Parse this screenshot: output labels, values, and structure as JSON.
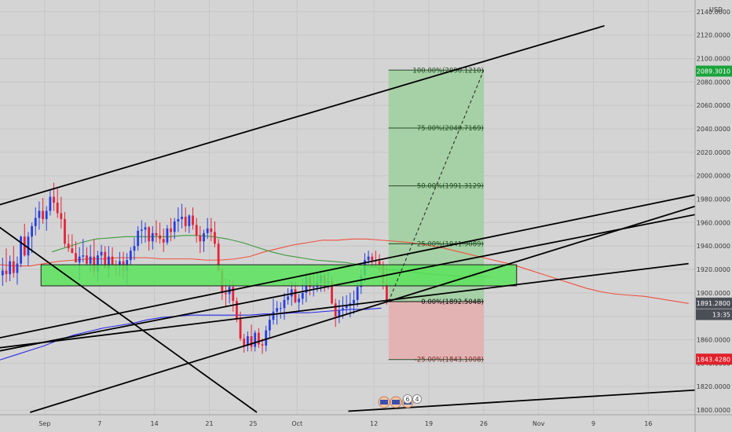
{
  "chart_data": {
    "type": "candlestick",
    "currency": "USD",
    "y_axis": {
      "ylim": [
        1796,
        2150
      ],
      "ticks": [
        "2140.0000",
        "2120.0000",
        "2100.0000",
        "2080.0000",
        "2060.0000",
        "2040.0000",
        "2020.0000",
        "2000.0000",
        "1980.0000",
        "1960.0000",
        "1940.0000",
        "1920.0000",
        "1900.0000",
        "1880.0000",
        "1860.0000",
        "1840.0000",
        "1820.0000",
        "1800.0000"
      ],
      "tick_values": [
        2140,
        2120,
        2100,
        2080,
        2060,
        2040,
        2020,
        2000,
        1980,
        1960,
        1940,
        1920,
        1900,
        1880,
        1860,
        1840,
        1820,
        1800
      ]
    },
    "x_axis": {
      "ticks": [
        {
          "label": "Sep",
          "bar": 12
        },
        {
          "label": "7",
          "bar": 27
        },
        {
          "label": "14",
          "bar": 42
        },
        {
          "label": "21",
          "bar": 57
        },
        {
          "label": "25",
          "bar": 69
        },
        {
          "label": "Oct",
          "bar": 81
        },
        {
          "label": "12",
          "bar": 102
        },
        {
          "label": "19",
          "bar": 117
        },
        {
          "label": "26",
          "bar": 132
        },
        {
          "label": "Nov",
          "bar": 147
        },
        {
          "label": "9",
          "bar": 162
        },
        {
          "label": "16",
          "bar": 177
        }
      ],
      "total_bars": 190
    },
    "price_badges": [
      {
        "text": "2089.3010",
        "value": 2089.301,
        "color": "#1aa33b"
      },
      {
        "text": "1891.2800",
        "value": 1891.28,
        "color": "#4a4e55"
      },
      {
        "text": "13:35",
        "value": 1881.5,
        "color": "#4a4e55"
      },
      {
        "text": "1843.4280",
        "value": 1843.428,
        "color": "#e0202a"
      }
    ],
    "fib_levels": [
      {
        "label": "100.00%(2090.1210)",
        "value": 2090.121
      },
      {
        "label": "75.00%(2040.7169)",
        "value": 2040.7169
      },
      {
        "label": "50.00%(1991.3129)",
        "value": 1991.3129
      },
      {
        "label": "25.00%(1941.9089)",
        "value": 1941.9089
      },
      {
        "label": "0.00%(1892.5048)",
        "value": 1892.5048
      },
      {
        "label": "-25.00%(1843.1008)",
        "value": 1843.1008
      }
    ],
    "position": {
      "start_bar": 106,
      "end_bar": 132,
      "entry": 1892.5048,
      "target": 2090.121,
      "stop": 1843.1008,
      "profit_color": "#a6d0a6",
      "loss_color": "#e3b3b3"
    },
    "zone": {
      "start_bar": 11,
      "end_bar": 141,
      "top": 1924,
      "bottom": 1906,
      "color": "#5be35b"
    },
    "trendlines": [
      {
        "from": [
          -6,
          1970
        ],
        "to": [
          165,
          2128
        ]
      },
      {
        "from": [
          -6,
          1858
        ],
        "to": [
          195,
          1987
        ]
      },
      {
        "from": [
          -6,
          1847
        ],
        "to": [
          195,
          1970
        ]
      },
      {
        "from": [
          -6,
          1851
        ],
        "to": [
          188,
          1925
        ]
      },
      {
        "from": [
          8,
          1798
        ],
        "to": [
          195,
          1979
        ]
      },
      {
        "from": [
          -3,
          1962
        ],
        "to": [
          70,
          1798
        ]
      },
      {
        "from": [
          95,
          1799
        ],
        "to": [
          195,
          1818
        ]
      }
    ],
    "dashed_line": {
      "from": [
        106,
        1892.5
      ],
      "to": [
        132,
        2090
      ]
    },
    "event_badges": [
      "6",
      "4"
    ],
    "candles": [
      [
        1915,
        1930,
        1906,
        1919
      ],
      [
        1919,
        1938,
        1909,
        1916
      ],
      [
        1916,
        1932,
        1910,
        1927
      ],
      [
        1927,
        1940,
        1913,
        1917
      ],
      [
        1917,
        1931,
        1907,
        1925
      ],
      [
        1925,
        1949,
        1922,
        1948
      ],
      [
        1948,
        1959,
        1931,
        1932
      ],
      [
        1932,
        1952,
        1923,
        1948
      ],
      [
        1948,
        1960,
        1934,
        1957
      ],
      [
        1957,
        1973,
        1949,
        1964
      ],
      [
        1964,
        1978,
        1954,
        1970
      ],
      [
        1970,
        1981,
        1959,
        1963
      ],
      [
        1963,
        1974,
        1953,
        1970
      ],
      [
        1970,
        1988,
        1966,
        1982
      ],
      [
        1982,
        1994,
        1970,
        1977
      ],
      [
        1977,
        1989,
        1964,
        1968
      ],
      [
        1968,
        1982,
        1955,
        1963
      ],
      [
        1963,
        1969,
        1939,
        1942
      ],
      [
        1942,
        1950,
        1935,
        1938
      ],
      [
        1938,
        1950,
        1934,
        1934
      ],
      [
        1934,
        1944,
        1926,
        1926
      ],
      [
        1926,
        1939,
        1911,
        1931
      ],
      [
        1931,
        1946,
        1926,
        1932
      ],
      [
        1932,
        1939,
        1923,
        1925
      ],
      [
        1925,
        1941,
        1918,
        1931
      ],
      [
        1931,
        1946,
        1914,
        1918
      ],
      [
        1918,
        1936,
        1910,
        1932
      ],
      [
        1932,
        1941,
        1922,
        1935
      ],
      [
        1935,
        1940,
        1921,
        1921
      ],
      [
        1921,
        1940,
        1913,
        1931
      ],
      [
        1931,
        1939,
        1924,
        1924
      ],
      [
        1924,
        1928,
        1914,
        1923
      ],
      [
        1923,
        1935,
        1914,
        1927
      ],
      [
        1927,
        1935,
        1912,
        1919
      ],
      [
        1919,
        1934,
        1907,
        1928
      ],
      [
        1928,
        1939,
        1924,
        1936
      ],
      [
        1936,
        1947,
        1928,
        1940
      ],
      [
        1940,
        1957,
        1936,
        1953
      ],
      [
        1953,
        1962,
        1942,
        1954
      ],
      [
        1954,
        1960,
        1943,
        1956
      ],
      [
        1956,
        1957,
        1936,
        1944
      ],
      [
        1944,
        1957,
        1937,
        1951
      ],
      [
        1951,
        1962,
        1943,
        1949
      ],
      [
        1949,
        1960,
        1942,
        1946
      ],
      [
        1946,
        1955,
        1935,
        1943
      ],
      [
        1943,
        1958,
        1941,
        1955
      ],
      [
        1955,
        1964,
        1944,
        1952
      ],
      [
        1952,
        1964,
        1946,
        1961
      ],
      [
        1961,
        1973,
        1952,
        1963
      ],
      [
        1963,
        1976,
        1955,
        1965
      ],
      [
        1965,
        1973,
        1952,
        1957
      ],
      [
        1957,
        1967,
        1951,
        1966
      ],
      [
        1966,
        1973,
        1954,
        1958
      ],
      [
        1958,
        1964,
        1943,
        1949
      ],
      [
        1949,
        1957,
        1934,
        1944
      ],
      [
        1944,
        1954,
        1935,
        1951
      ],
      [
        1951,
        1964,
        1946,
        1955
      ],
      [
        1955,
        1964,
        1944,
        1952
      ],
      [
        1952,
        1961,
        1939,
        1942
      ],
      [
        1942,
        1946,
        1918,
        1919
      ],
      [
        1919,
        1921,
        1894,
        1900
      ],
      [
        1900,
        1912,
        1888,
        1899
      ],
      [
        1899,
        1911,
        1891,
        1905
      ],
      [
        1905,
        1911,
        1884,
        1893
      ],
      [
        1893,
        1896,
        1875,
        1878
      ],
      [
        1878,
        1884,
        1859,
        1861
      ],
      [
        1861,
        1865,
        1849,
        1855
      ],
      [
        1855,
        1867,
        1850,
        1863
      ],
      [
        1863,
        1873,
        1850,
        1854
      ],
      [
        1854,
        1868,
        1850,
        1866
      ],
      [
        1866,
        1870,
        1853,
        1856
      ],
      [
        1856,
        1861,
        1848,
        1855
      ],
      [
        1855,
        1872,
        1850,
        1868
      ],
      [
        1868,
        1881,
        1862,
        1877
      ],
      [
        1877,
        1895,
        1873,
        1884
      ],
      [
        1884,
        1893,
        1873,
        1887
      ],
      [
        1887,
        1892,
        1878,
        1887
      ],
      [
        1887,
        1900,
        1877,
        1894
      ],
      [
        1894,
        1904,
        1890,
        1897
      ],
      [
        1897,
        1910,
        1889,
        1903
      ],
      [
        1903,
        1910,
        1891,
        1892
      ],
      [
        1892,
        1899,
        1884,
        1895
      ],
      [
        1895,
        1913,
        1890,
        1900
      ],
      [
        1900,
        1918,
        1892,
        1914
      ],
      [
        1914,
        1918,
        1898,
        1905
      ],
      [
        1905,
        1917,
        1897,
        1905
      ],
      [
        1905,
        1918,
        1901,
        1909
      ],
      [
        1909,
        1919,
        1901,
        1915
      ],
      [
        1915,
        1917,
        1901,
        1908
      ],
      [
        1908,
        1918,
        1903,
        1910
      ],
      [
        1910,
        1914,
        1890,
        1891
      ],
      [
        1891,
        1895,
        1871,
        1880
      ],
      [
        1880,
        1894,
        1874,
        1885
      ],
      [
        1885,
        1897,
        1878,
        1887
      ],
      [
        1887,
        1898,
        1882,
        1889
      ],
      [
        1889,
        1900,
        1879,
        1891
      ],
      [
        1891,
        1902,
        1882,
        1894
      ],
      [
        1894,
        1909,
        1888,
        1905
      ],
      [
        1905,
        1920,
        1899,
        1915
      ],
      [
        1915,
        1934,
        1909,
        1928
      ],
      [
        1928,
        1936,
        1925,
        1931
      ],
      [
        1931,
        1934,
        1922,
        1928
      ],
      [
        1928,
        1936,
        1922,
        1927
      ],
      [
        1927,
        1933,
        1918,
        1924
      ],
      [
        1924,
        1927,
        1903,
        1908
      ],
      [
        1908,
        1924,
        1890,
        1892
      ]
    ],
    "moving_averages": [
      {
        "color": "#f0503f",
        "start_bar": -4,
        "points": [
          1925,
          1924,
          1923,
          1923,
          1925,
          1927,
          1928,
          1929,
          1929,
          1930,
          1930,
          1930,
          1929,
          1929,
          1929,
          1928,
          1928,
          1929,
          1931,
          1935,
          1938,
          1941,
          1943,
          1945,
          1945,
          1946,
          1946,
          1945,
          1944,
          1943,
          1941,
          1939,
          1936,
          1933,
          1930,
          1927,
          1924,
          1920,
          1916,
          1912,
          1908,
          1904,
          1901,
          1899,
          1898,
          1897,
          1895,
          1893,
          1891
        ]
      },
      {
        "color": "#3d9a3d",
        "start_bar": 14,
        "points": [
          1935,
          1939,
          1943,
          1946,
          1947,
          1948,
          1948,
          1948,
          1948,
          1949,
          1949,
          1948,
          1946,
          1943,
          1939,
          1935,
          1932,
          1930,
          1928,
          1927,
          1926,
          1924,
          1922,
          1920,
          1919,
          1917,
          1916,
          1915,
          1914,
          1914,
          1914
        ]
      },
      {
        "color": "#2a2ae8",
        "start_bar": -4,
        "points": [
          1840,
          1843,
          1847,
          1851,
          1855,
          1860,
          1864,
          1867,
          1870,
          1872,
          1874,
          1877,
          1879,
          1880,
          1881,
          1881,
          1881,
          1881,
          1881,
          1882,
          1882,
          1883,
          1883,
          1884,
          1885,
          1886,
          1886,
          1887
        ]
      }
    ]
  }
}
